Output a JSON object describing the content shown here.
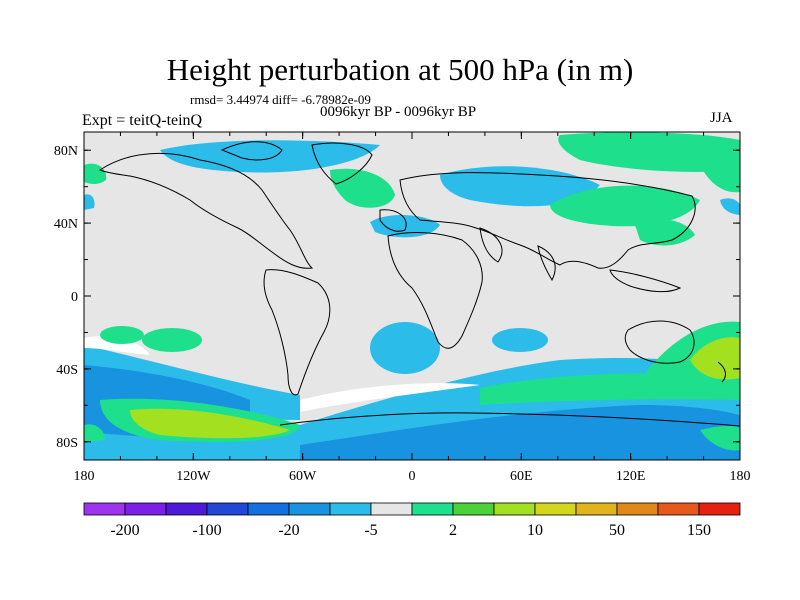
{
  "title": "Height perturbation at 500 hPa (in m)",
  "stats": "rmsd= 3.44974 diff= -6.78982e-09",
  "period": "0096kyr BP - 0096kyr BP",
  "experiment": "Expt = teitQ-teinQ",
  "season": "JJA",
  "lat_ticks": [
    "80N",
    "40N",
    "0",
    "40S",
    "80S"
  ],
  "lon_ticks": [
    "180",
    "120W",
    "60W",
    "0",
    "60E",
    "120E",
    "180"
  ],
  "colorbar": {
    "colors": [
      "#9f34f0",
      "#7a20e8",
      "#4c1ad8",
      "#2246d8",
      "#1470e0",
      "#1893e0",
      "#2bbcea",
      "#e6e6e6",
      "#1ee08c",
      "#4ad238",
      "#a3e020",
      "#d2d61c",
      "#e0b41a",
      "#e08818",
      "#e8581c",
      "#e82010"
    ],
    "labels": [
      "-200",
      "-100",
      "-20",
      "-5",
      "2",
      "10",
      "50",
      "150"
    ]
  },
  "fills": {
    "land_bg": "#e6e6e6",
    "cyan": "#2bbcea",
    "green": "#1ee08c",
    "light_green": "#a3e020",
    "blue": "#1893e0",
    "white": "#ffffff"
  }
}
